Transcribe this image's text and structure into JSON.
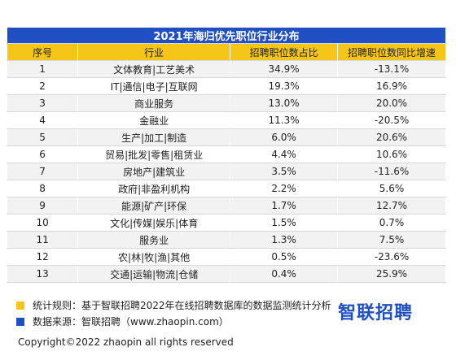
{
  "table": {
    "title": "2021年海归优先职位行业分布",
    "header": [
      "序号",
      "行业",
      "招聘职位数占比",
      "招聘职位数同比增速"
    ],
    "rows": [
      [
        "1",
        "文体教育|工艺美术",
        "34.9%",
        "-13.1%"
      ],
      [
        "2",
        "IT|通信|电子|互联网",
        "19.3%",
        "16.9%"
      ],
      [
        "3",
        "商业服务",
        "13.0%",
        "20.0%"
      ],
      [
        "4",
        "金融业",
        "11.3%",
        "-20.5%"
      ],
      [
        "5",
        "生产|加工|制造",
        "6.0%",
        "20.6%"
      ],
      [
        "6",
        "贸易|批发|零售|租赁业",
        "4.4%",
        "10.6%"
      ],
      [
        "7",
        "房地产|建筑业",
        "3.5%",
        "-11.6%"
      ],
      [
        "8",
        "政府|非盈利机构",
        "2.2%",
        "5.6%"
      ],
      [
        "9",
        "能源|矿产|环保",
        "1.7%",
        "12.7%"
      ],
      [
        "10",
        "文化|传媒|娱乐|体育",
        "1.5%",
        "0.7%"
      ],
      [
        "11",
        "服务业",
        "1.3%",
        "7.5%"
      ],
      [
        "12",
        "农|林|牧|渔|其他",
        "0.5%",
        "-23.6%"
      ],
      [
        "13",
        "交通|运输|物流|仓储",
        "0.4%",
        "25.9%"
      ]
    ]
  },
  "notes": [
    "统计规则：基于智联招聘2022年在线招聘数据库的数据监测统计分析",
    "数据来源：智联招聘（www.zhaopin.com）"
  ],
  "logo": "智联招聘",
  "footer": "Copyright©2022 zhaopin all rights reserved"
}
